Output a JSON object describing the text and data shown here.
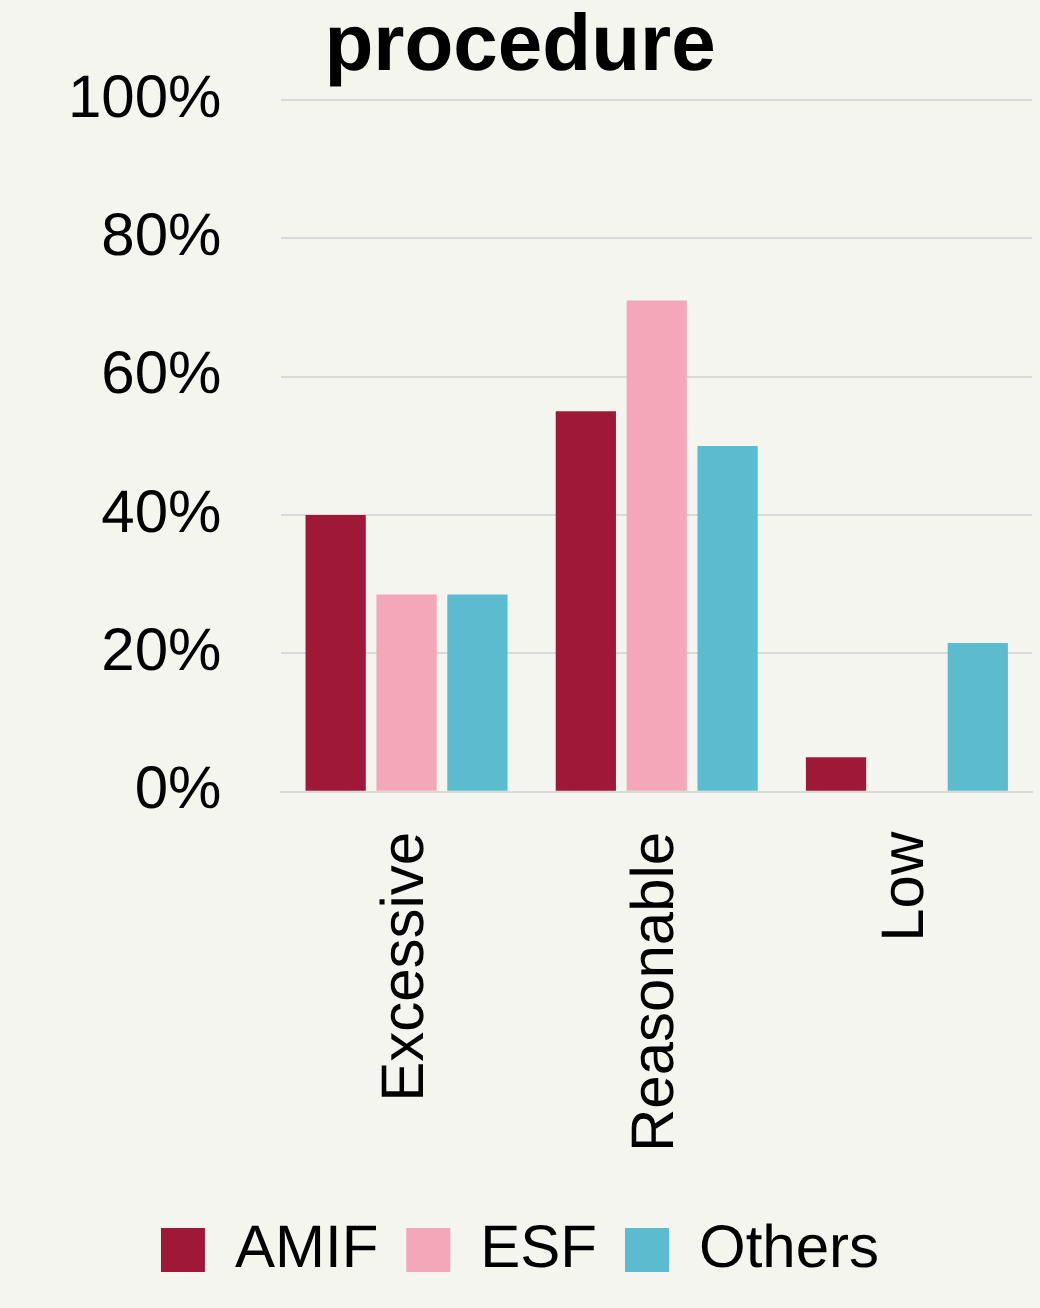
{
  "chart_data": {
    "type": "bar",
    "title": "procedure",
    "categories": [
      "Excessive",
      "Reasonable",
      "Low"
    ],
    "series": [
      {
        "name": "AMIF",
        "color": "#a01838",
        "values": [
          40,
          55,
          5
        ]
      },
      {
        "name": "ESF",
        "color": "#f4a7b9",
        "values": [
          28.5,
          71,
          0
        ]
      },
      {
        "name": "Others",
        "color": "#5bbcd0",
        "values": [
          28.5,
          50,
          21.5
        ]
      }
    ],
    "ylim": [
      0,
      100
    ],
    "yticks": [
      {
        "value": 0,
        "label": "0%"
      },
      {
        "value": 20,
        "label": "20%"
      },
      {
        "value": 40,
        "label": "40%"
      },
      {
        "value": 60,
        "label": "60%"
      },
      {
        "value": 80,
        "label": "80%"
      },
      {
        "value": 100,
        "label": "100%"
      }
    ],
    "grid": "y",
    "legend": "bottom"
  }
}
